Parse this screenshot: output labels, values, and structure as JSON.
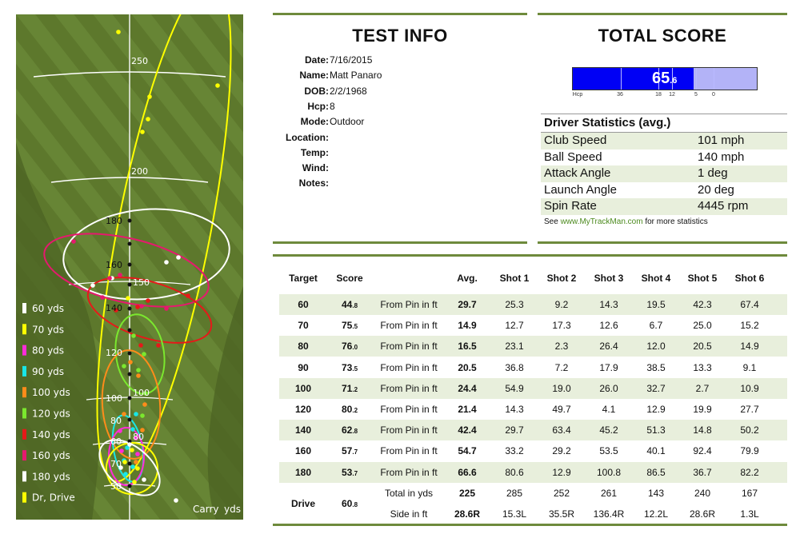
{
  "map": {
    "distance_labels": [
      "250",
      "200",
      "180",
      "160",
      "150",
      "140",
      "120",
      "100",
      "100",
      "80",
      "80",
      "70",
      "60",
      "50"
    ],
    "carry_label": "Carry",
    "yds_label": "yds",
    "background_color": "#5f7a2e",
    "legend": [
      {
        "label": "60 yds",
        "color": "#ffffff"
      },
      {
        "label": "70 yds",
        "color": "#ffff00"
      },
      {
        "label": "80 yds",
        "color": "#ff2cd8"
      },
      {
        "label": "90 yds",
        "color": "#19e6e6"
      },
      {
        "label": "100 yds",
        "color": "#ff8c1a"
      },
      {
        "label": "120 yds",
        "color": "#7be82e"
      },
      {
        "label": "140 yds",
        "color": "#e61919"
      },
      {
        "label": "160 yds",
        "color": "#e6196e"
      },
      {
        "label": "180 yds",
        "color": "#ffffff"
      },
      {
        "label": "Dr, Drive",
        "color": "#ffff00"
      }
    ]
  },
  "test_info": {
    "title": "TEST INFO",
    "rows": [
      {
        "key": "Date:",
        "value": "7/16/2015"
      },
      {
        "key": "Name:",
        "value": "Matt Panaro"
      },
      {
        "key": "DOB:",
        "value": "2/2/1968"
      },
      {
        "key": "Hcp:",
        "value": "8"
      },
      {
        "key": "Mode:",
        "value": "Outdoor"
      },
      {
        "key": "Location:",
        "value": ""
      },
      {
        "key": "Temp:",
        "value": ""
      },
      {
        "key": "Wind:",
        "value": ""
      },
      {
        "key": "Notes:",
        "value": ""
      }
    ]
  },
  "total_score": {
    "title": "TOTAL SCORE",
    "score_main": "65",
    "score_decimal": ".6",
    "score_value": 65.6,
    "scale_labels": [
      "Hcp",
      "36",
      "18",
      "12",
      "5",
      "0"
    ],
    "bar_color": "#0000f5",
    "bar_background": "#b3b3f7"
  },
  "driver_stats": {
    "header": "Driver Statistics (avg.)",
    "rows": [
      {
        "name": "Club Speed",
        "value": "101 mph"
      },
      {
        "name": "Ball Speed",
        "value": "140 mph"
      },
      {
        "name": "Attack Angle",
        "value": "1 deg"
      },
      {
        "name": "Launch Angle",
        "value": "20 deg"
      },
      {
        "name": "Spin Rate",
        "value": "4445 rpm"
      }
    ],
    "footer_prefix": "See ",
    "footer_link": "www.MyTrackMan.com",
    "footer_suffix": " for more statistics"
  },
  "results": {
    "headers": [
      "Target",
      "Score",
      "Avg.",
      "Shot 1",
      "Shot 2",
      "Shot 3",
      "Shot 4",
      "Shot 5",
      "Shot 6"
    ],
    "rows": [
      {
        "target": "60",
        "score": "44",
        "score_dec": ".8",
        "metric": "From Pin in ft",
        "avg": "29.7",
        "shots": [
          "25.3",
          "9.2",
          "14.3",
          "19.5",
          "42.3",
          "67.4"
        ]
      },
      {
        "target": "70",
        "score": "75",
        "score_dec": ".5",
        "metric": "From Pin in ft",
        "avg": "14.9",
        "shots": [
          "12.7",
          "17.3",
          "12.6",
          "6.7",
          "25.0",
          "15.2"
        ]
      },
      {
        "target": "80",
        "score": "76",
        "score_dec": ".0",
        "metric": "From Pin in ft",
        "avg": "16.5",
        "shots": [
          "23.1",
          "2.3",
          "26.4",
          "12.0",
          "20.5",
          "14.9"
        ]
      },
      {
        "target": "90",
        "score": "73",
        "score_dec": ".5",
        "metric": "From Pin in ft",
        "avg": "20.5",
        "shots": [
          "36.8",
          "7.2",
          "17.9",
          "38.5",
          "13.3",
          "9.1"
        ]
      },
      {
        "target": "100",
        "score": "71",
        "score_dec": ".2",
        "metric": "From Pin in ft",
        "avg": "24.4",
        "shots": [
          "54.9",
          "19.0",
          "26.0",
          "32.7",
          "2.7",
          "10.9"
        ]
      },
      {
        "target": "120",
        "score": "80",
        "score_dec": ".2",
        "metric": "From Pin in ft",
        "avg": "21.4",
        "shots": [
          "14.3",
          "49.7",
          "4.1",
          "12.9",
          "19.9",
          "27.7"
        ]
      },
      {
        "target": "140",
        "score": "62",
        "score_dec": ".8",
        "metric": "From Pin in ft",
        "avg": "42.4",
        "shots": [
          "29.7",
          "63.4",
          "45.2",
          "51.3",
          "14.8",
          "50.2"
        ]
      },
      {
        "target": "160",
        "score": "57",
        "score_dec": ".7",
        "metric": "From Pin in ft",
        "avg": "54.7",
        "shots": [
          "33.2",
          "29.2",
          "53.5",
          "40.1",
          "92.4",
          "79.9"
        ]
      },
      {
        "target": "180",
        "score": "53",
        "score_dec": ".7",
        "metric": "From Pin in ft",
        "avg": "66.6",
        "shots": [
          "80.6",
          "12.9",
          "100.8",
          "86.5",
          "36.7",
          "82.2"
        ]
      }
    ],
    "drive": {
      "target": "Drive",
      "score": "60",
      "score_dec": ".8",
      "total": {
        "metric": "Total in yds",
        "avg": "225",
        "shots": [
          "285",
          "252",
          "261",
          "143",
          "240",
          "167"
        ]
      },
      "side": {
        "metric": "Side in ft",
        "avg": "28.6R",
        "shots": [
          "15.3L",
          "35.5R",
          "136.4R",
          "12.2L",
          "28.6R",
          "1.3L"
        ]
      }
    }
  }
}
